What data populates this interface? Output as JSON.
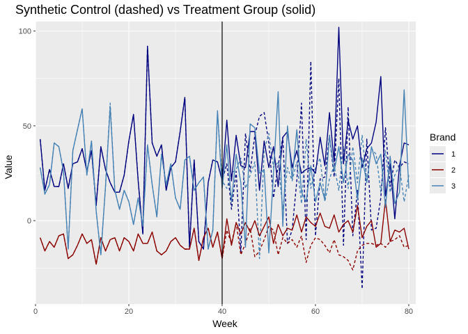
{
  "chart_data": {
    "type": "line",
    "title": "Synthetic Control (dashed) vs Treatment Group (solid)",
    "xlabel": "Week",
    "ylabel": "Value",
    "xlim": [
      0,
      81.5
    ],
    "ylim": [
      -44,
      105
    ],
    "x_ticks": [
      0,
      20,
      40,
      60,
      80
    ],
    "y_ticks": [
      0,
      50,
      100
    ],
    "grid": true,
    "vline": 40,
    "legend": {
      "title": "Brand",
      "position": "right"
    },
    "x": [
      1,
      2,
      3,
      4,
      5,
      6,
      7,
      8,
      9,
      10,
      11,
      12,
      13,
      14,
      15,
      16,
      17,
      18,
      19,
      20,
      21,
      22,
      23,
      24,
      25,
      26,
      27,
      28,
      29,
      30,
      31,
      32,
      33,
      34,
      35,
      36,
      37,
      38,
      39,
      40,
      41,
      42,
      43,
      44,
      45,
      46,
      47,
      48,
      49,
      50,
      51,
      52,
      53,
      54,
      55,
      56,
      57,
      58,
      59,
      60,
      61,
      62,
      63,
      64,
      65,
      66,
      67,
      68,
      69,
      70,
      71,
      72,
      73,
      74,
      75,
      76,
      77,
      78,
      79,
      80
    ],
    "series": [
      {
        "name": "1",
        "color": "#00007f",
        "actual": [
          43,
          16,
          27,
          18,
          18,
          30,
          17,
          30,
          31,
          38,
          26,
          37,
          8,
          39,
          27,
          20,
          15,
          15,
          24,
          42,
          56,
          21,
          -7,
          92,
          41,
          34,
          40,
          16,
          28,
          31,
          47,
          65,
          -14,
          32,
          -11,
          -15,
          20,
          32,
          31,
          21,
          53,
          21,
          45,
          29,
          28,
          47,
          47,
          16,
          42,
          28,
          39,
          18,
          44,
          47,
          28,
          37,
          25,
          27,
          28,
          25,
          44,
          29,
          57,
          31,
          102,
          30,
          53,
          43,
          50,
          28,
          38,
          41,
          52,
          76,
          13,
          30,
          1,
          29,
          41,
          40
        ],
        "synthetic": [
          43,
          16,
          27,
          18,
          18,
          30,
          17,
          30,
          31,
          38,
          26,
          37,
          8,
          39,
          27,
          20,
          15,
          15,
          24,
          42,
          56,
          21,
          -7,
          92,
          41,
          34,
          40,
          16,
          28,
          31,
          47,
          65,
          -14,
          32,
          -11,
          -15,
          20,
          32,
          31,
          21,
          30,
          6,
          26,
          -17,
          46,
          26,
          45,
          55,
          57,
          41,
          12,
          29,
          44,
          -12,
          -5,
          21,
          62,
          -10,
          84,
          -8,
          22,
          23,
          45,
          23,
          75,
          -13,
          60,
          -8,
          16,
          -36,
          43,
          -5,
          -4,
          12,
          49,
          18,
          32,
          28,
          31,
          30
        ]
      },
      {
        "name": "2",
        "color": "#8b0000",
        "actual": [
          -9,
          -16,
          -11,
          -14,
          -8,
          -7,
          -20,
          -18,
          -13,
          -7,
          -12,
          -10,
          -23,
          -9,
          -16,
          -10,
          -9,
          -16,
          -9,
          -11,
          -16,
          -7,
          -12,
          -12,
          -6,
          -16,
          -18,
          -16,
          -11,
          -9,
          -13,
          -15,
          -15,
          -4,
          -21,
          -9,
          -4,
          -14,
          -6,
          -20,
          1,
          -13,
          -1,
          -7,
          -1,
          -6,
          0,
          -8,
          -3,
          2,
          -12,
          -2,
          -8,
          -4,
          -5,
          3,
          -6,
          2,
          -1,
          -3,
          4,
          -3,
          -4,
          3,
          -6,
          -2,
          0,
          -6,
          8,
          -9,
          -3,
          0,
          -14,
          -12,
          11,
          -11,
          -5,
          -6,
          -4,
          -15
        ],
        "synthetic": [
          -9,
          -16,
          -11,
          -14,
          -8,
          -7,
          -20,
          -18,
          -13,
          -7,
          -12,
          -10,
          -23,
          -9,
          -16,
          -10,
          -9,
          -16,
          -9,
          -11,
          -16,
          -7,
          -12,
          -12,
          -6,
          -16,
          -18,
          -16,
          -11,
          -9,
          -13,
          -15,
          -15,
          -4,
          -21,
          -9,
          -4,
          -14,
          -6,
          -20,
          -5,
          -12,
          -1,
          -18,
          -12,
          -4,
          -19,
          -16,
          -10,
          -3,
          -5,
          -18,
          -9,
          -12,
          -10,
          -14,
          -8,
          -22,
          -13,
          -9,
          -10,
          -13,
          -17,
          -10,
          -18,
          -19,
          -21,
          -26,
          -16,
          -13,
          -12,
          -12,
          -13,
          -12,
          -14,
          -11,
          -10,
          -8,
          -14,
          -13
        ]
      },
      {
        "name": "3",
        "color": "#4682b4",
        "actual": [
          28,
          14,
          19,
          41,
          39,
          26,
          -15,
          37,
          48,
          59,
          24,
          42,
          5,
          -18,
          18,
          60,
          16,
          6,
          16,
          10,
          -2,
          12,
          -3,
          40,
          19,
          2,
          35,
          19,
          30,
          12,
          6,
          32,
          34,
          16,
          20,
          23,
          -15,
          -5,
          58,
          17,
          40,
          10,
          35,
          20,
          -14,
          51,
          49,
          25,
          27,
          -17,
          25,
          68,
          -3,
          50,
          22,
          48,
          15,
          10,
          29,
          10,
          20,
          11,
          45,
          26,
          39,
          20,
          35,
          32,
          11,
          33,
          20,
          39,
          30,
          35,
          7,
          34,
          9,
          15,
          69,
          17
        ],
        "synthetic": [
          28,
          14,
          19,
          41,
          39,
          26,
          -15,
          37,
          48,
          59,
          24,
          42,
          5,
          -18,
          18,
          62,
          16,
          6,
          16,
          10,
          -2,
          12,
          -3,
          40,
          19,
          2,
          35,
          19,
          30,
          12,
          6,
          32,
          34,
          16,
          20,
          23,
          -15,
          -5,
          57,
          21,
          17,
          25,
          27,
          33,
          17,
          24,
          31,
          -20,
          37,
          46,
          28,
          31,
          6,
          28,
          21,
          31,
          9,
          43,
          17,
          28,
          33,
          10,
          22,
          29,
          16,
          39,
          17,
          39,
          20,
          45,
          21,
          38,
          35,
          15,
          37,
          15,
          24,
          29,
          10,
          24
        ]
      }
    ]
  }
}
